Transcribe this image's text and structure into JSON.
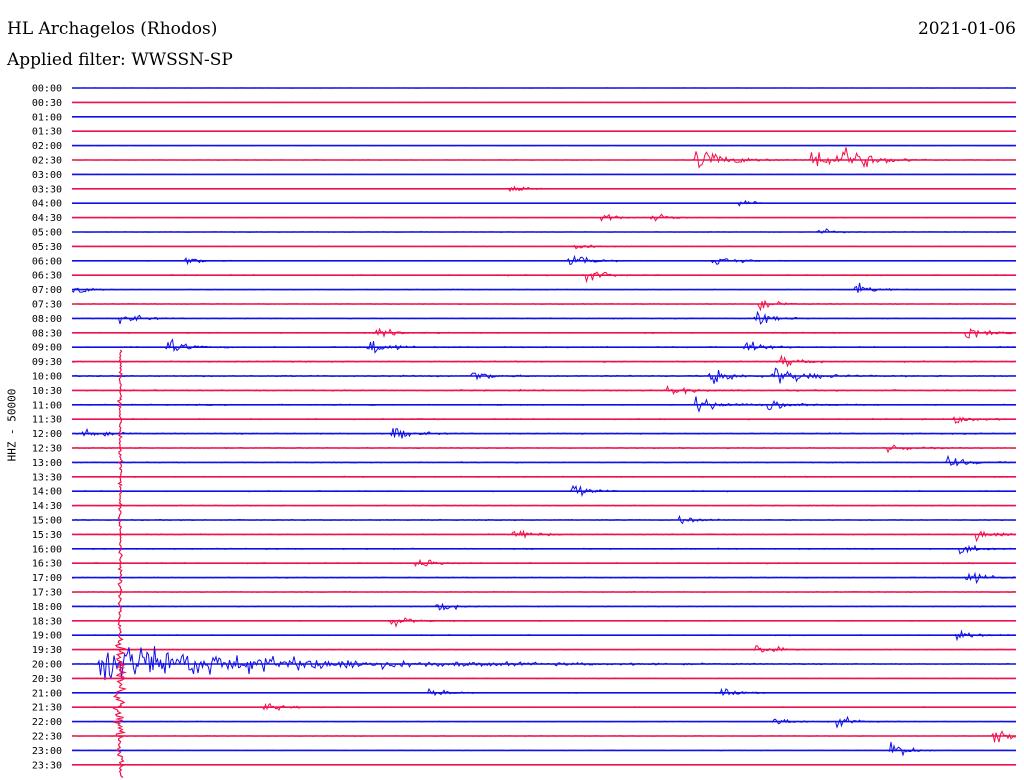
{
  "header": {
    "station": "HL Archagelos (Rhodos)",
    "filter": "Applied filter: WWSSN-SP",
    "date": "2021-01-06"
  },
  "chart_data": {
    "type": "line",
    "title": "HL Archagelos (Rhodos)",
    "subtitle": "Applied filter: WWSSN-SP",
    "date": "2021-01-06",
    "ylabel": "HHZ - 50000",
    "xlabel": "",
    "grid": false,
    "trace_colors": [
      "#1010e6",
      "#f0104a"
    ],
    "row_labels": [
      "00:00",
      "00:30",
      "01:00",
      "01:30",
      "02:00",
      "02:30",
      "03:00",
      "03:30",
      "04:00",
      "04:30",
      "05:00",
      "05:30",
      "06:00",
      "06:30",
      "07:00",
      "07:30",
      "08:00",
      "08:30",
      "09:00",
      "09:30",
      "10:00",
      "10:30",
      "11:00",
      "11:30",
      "12:00",
      "12:30",
      "13:00",
      "13:30",
      "14:00",
      "14:30",
      "15:00",
      "15:30",
      "16:00",
      "16:30",
      "17:00",
      "17:30",
      "18:00",
      "18:30",
      "19:00",
      "19:30",
      "20:00",
      "20:30",
      "21:00",
      "21:30",
      "22:00",
      "22:30",
      "23:00",
      "23:30"
    ],
    "noise_level": [
      0.1,
      0.12,
      0.12,
      0.13,
      0.13,
      0.2,
      0.13,
      0.16,
      0.15,
      0.2,
      0.25,
      0.22,
      0.32,
      0.42,
      0.33,
      0.38,
      0.4,
      0.45,
      0.55,
      0.6,
      0.65,
      0.62,
      0.55,
      0.5,
      0.6,
      0.5,
      0.48,
      0.45,
      0.45,
      0.42,
      0.45,
      0.48,
      0.5,
      0.48,
      0.45,
      0.42,
      0.4,
      0.4,
      0.38,
      0.32,
      0.32,
      0.3,
      0.28,
      0.32,
      0.28,
      0.28,
      0.22,
      0.22
    ],
    "events": [
      {
        "row": 5,
        "minute": 19.8,
        "amp": 20,
        "dur": 1.0
      },
      {
        "row": 5,
        "minute": 23.5,
        "amp": 22,
        "dur": 1.0
      },
      {
        "row": 5,
        "minute": 24.5,
        "amp": 16,
        "dur": 0.8
      },
      {
        "row": 7,
        "minute": 13.9,
        "amp": 9,
        "dur": 0.4
      },
      {
        "row": 8,
        "minute": 21.2,
        "amp": 9,
        "dur": 0.4
      },
      {
        "row": 9,
        "minute": 16.8,
        "amp": 10,
        "dur": 0.4
      },
      {
        "row": 9,
        "minute": 18.4,
        "amp": 10,
        "dur": 0.4
      },
      {
        "row": 10,
        "minute": 23.7,
        "amp": 9,
        "dur": 0.4
      },
      {
        "row": 11,
        "minute": 16.0,
        "amp": 9,
        "dur": 0.4
      },
      {
        "row": 12,
        "minute": 3.6,
        "amp": 10,
        "dur": 0.4
      },
      {
        "row": 12,
        "minute": 15.8,
        "amp": 16,
        "dur": 0.5
      },
      {
        "row": 12,
        "minute": 20.4,
        "amp": 16,
        "dur": 0.5
      },
      {
        "row": 13,
        "minute": 16.3,
        "amp": 14,
        "dur": 0.5
      },
      {
        "row": 14,
        "minute": 0.0,
        "amp": 12,
        "dur": 0.4
      },
      {
        "row": 14,
        "minute": 24.9,
        "amp": 12,
        "dur": 0.5
      },
      {
        "row": 15,
        "minute": 21.8,
        "amp": 10,
        "dur": 0.5
      },
      {
        "row": 16,
        "minute": 1.5,
        "amp": 12,
        "dur": 0.5
      },
      {
        "row": 16,
        "minute": 21.7,
        "amp": 14,
        "dur": 0.5
      },
      {
        "row": 17,
        "minute": 9.6,
        "amp": 10,
        "dur": 0.5
      },
      {
        "row": 17,
        "minute": 28.4,
        "amp": 12,
        "dur": 0.5
      },
      {
        "row": 18,
        "minute": 3.0,
        "amp": 14,
        "dur": 0.5
      },
      {
        "row": 18,
        "minute": 9.4,
        "amp": 16,
        "dur": 0.5
      },
      {
        "row": 18,
        "minute": 21.4,
        "amp": 14,
        "dur": 0.5
      },
      {
        "row": 19,
        "minute": 22.5,
        "amp": 12,
        "dur": 0.5
      },
      {
        "row": 20,
        "minute": 12.7,
        "amp": 12,
        "dur": 0.5
      },
      {
        "row": 20,
        "minute": 20.3,
        "amp": 16,
        "dur": 0.6
      },
      {
        "row": 20,
        "minute": 22.3,
        "amp": 18,
        "dur": 0.8
      },
      {
        "row": 21,
        "minute": 18.9,
        "amp": 12,
        "dur": 0.5
      },
      {
        "row": 22,
        "minute": 19.8,
        "amp": 14,
        "dur": 0.6
      },
      {
        "row": 22,
        "minute": 22.1,
        "amp": 12,
        "dur": 0.5
      },
      {
        "row": 23,
        "minute": 28.0,
        "amp": 10,
        "dur": 0.5
      },
      {
        "row": 24,
        "minute": 0.3,
        "amp": 12,
        "dur": 0.5
      },
      {
        "row": 24,
        "minute": 10.2,
        "amp": 12,
        "dur": 0.5
      },
      {
        "row": 25,
        "minute": 25.9,
        "amp": 12,
        "dur": 0.5
      },
      {
        "row": 26,
        "minute": 27.8,
        "amp": 12,
        "dur": 0.5
      },
      {
        "row": 28,
        "minute": 15.9,
        "amp": 12,
        "dur": 0.5
      },
      {
        "row": 30,
        "minute": 19.3,
        "amp": 10,
        "dur": 0.5
      },
      {
        "row": 31,
        "minute": 14.0,
        "amp": 12,
        "dur": 0.5
      },
      {
        "row": 31,
        "minute": 28.7,
        "amp": 14,
        "dur": 0.5
      },
      {
        "row": 32,
        "minute": 28.2,
        "amp": 12,
        "dur": 0.5
      },
      {
        "row": 33,
        "minute": 10.9,
        "amp": 12,
        "dur": 0.5
      },
      {
        "row": 34,
        "minute": 28.4,
        "amp": 14,
        "dur": 0.5
      },
      {
        "row": 36,
        "minute": 11.6,
        "amp": 12,
        "dur": 0.5
      },
      {
        "row": 37,
        "minute": 10.1,
        "amp": 12,
        "dur": 0.5
      },
      {
        "row": 38,
        "minute": 28.1,
        "amp": 12,
        "dur": 0.5
      },
      {
        "row": 39,
        "minute": 21.7,
        "amp": 14,
        "dur": 0.5
      },
      {
        "row": 40,
        "minute": 0.9,
        "amp": 36,
        "dur": 5.0
      },
      {
        "row": 42,
        "minute": 11.3,
        "amp": 10,
        "dur": 0.5
      },
      {
        "row": 42,
        "minute": 20.5,
        "amp": 10,
        "dur": 0.5
      },
      {
        "row": 43,
        "minute": 6.1,
        "amp": 12,
        "dur": 0.5
      },
      {
        "row": 44,
        "minute": 22.3,
        "amp": 10,
        "dur": 0.5
      },
      {
        "row": 44,
        "minute": 24.3,
        "amp": 10,
        "dur": 0.5
      },
      {
        "row": 45,
        "minute": 29.3,
        "amp": 14,
        "dur": 0.5
      },
      {
        "row": 46,
        "minute": 26.0,
        "amp": 16,
        "dur": 0.5
      }
    ]
  }
}
